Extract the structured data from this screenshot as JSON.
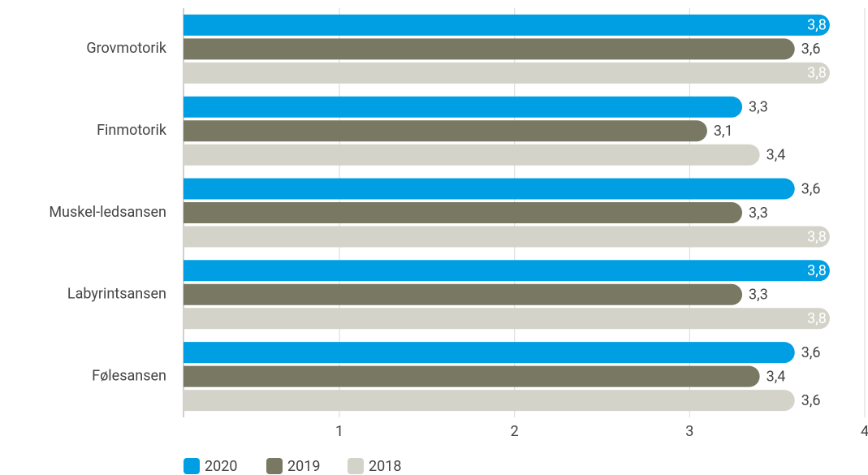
{
  "chart_data": {
    "type": "bar",
    "orientation": "horizontal",
    "categories": [
      "Grovmotorik",
      "Finmotorik",
      "Muskel-ledsansen",
      "Labyrintsansen",
      "Følesansen"
    ],
    "series": [
      {
        "name": "2020",
        "color": "#009fe3",
        "values": [
          3.8,
          3.3,
          3.6,
          3.8,
          3.6
        ],
        "value_labels": [
          "3,8",
          "3,3",
          "3,6",
          "3,8",
          "3,6"
        ]
      },
      {
        "name": "2019",
        "color": "#797863",
        "values": [
          3.6,
          3.1,
          3.3,
          3.3,
          3.4
        ],
        "value_labels": [
          "3,6",
          "3,1",
          "3,3",
          "3,3",
          "3,4"
        ]
      },
      {
        "name": "2018",
        "color": "#d3d3c9",
        "values": [
          3.8,
          3.4,
          3.8,
          3.8,
          3.6
        ],
        "value_labels": [
          "3,8",
          "3,4",
          "3,8",
          "3,8",
          "3,6"
        ]
      }
    ],
    "xlim": [
      0.1,
      4
    ],
    "xticks": [
      1,
      2,
      3,
      4
    ],
    "grid": true,
    "legend": "bottom-left"
  }
}
